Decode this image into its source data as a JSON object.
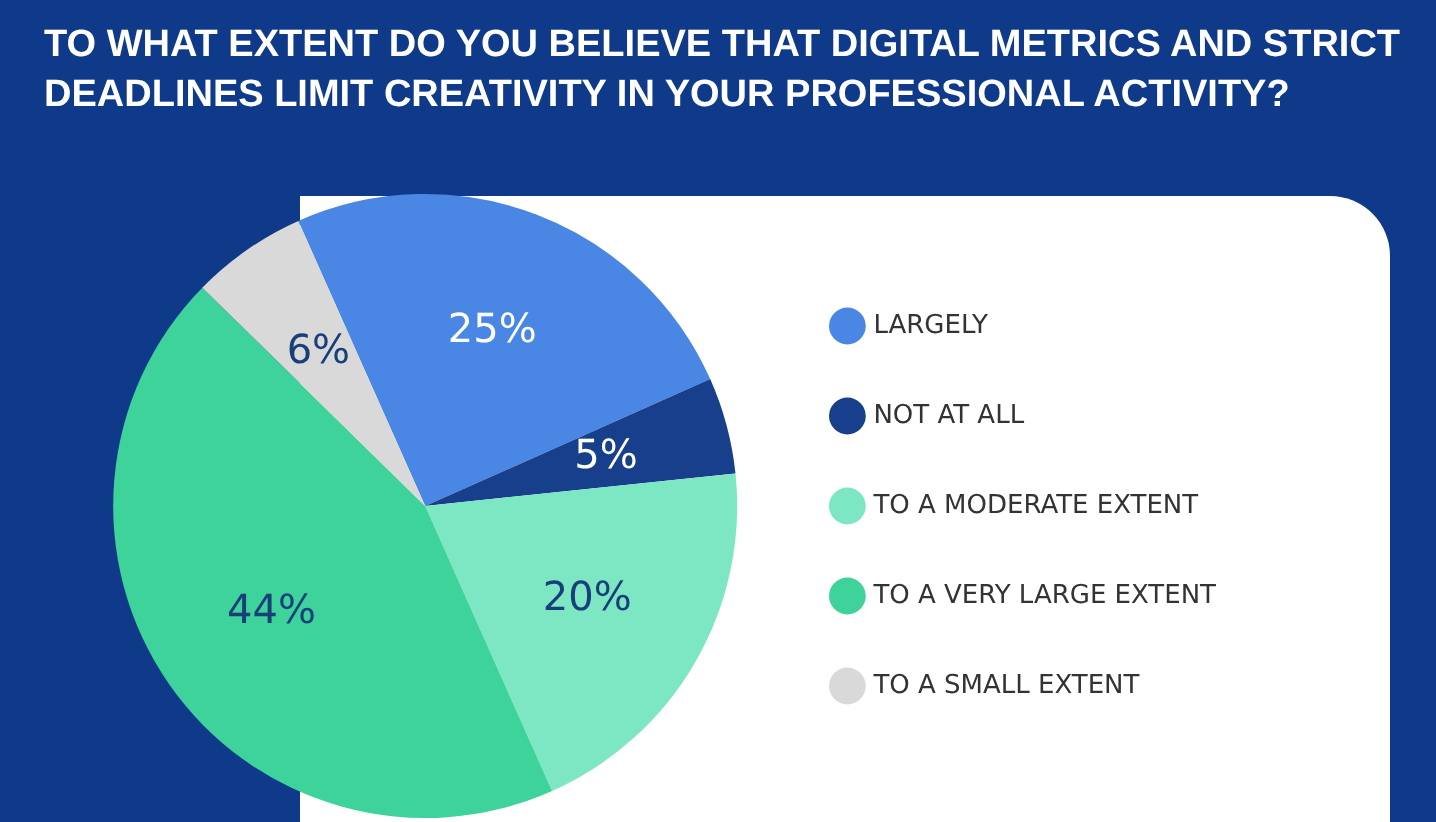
{
  "chart_data": {
    "type": "pie",
    "title": "TO WHAT EXTENT DO YOU BELIEVE THAT DIGITAL METRICS AND STRICT DEADLINES LIMIT CREATIVITY IN YOUR PROFESSIONAL ACTIVITY?",
    "categories": [
      "LARGELY",
      "NOT AT ALL",
      "TO A MODERATE EXTENT",
      "TO A VERY LARGE EXTENT",
      "TO A SMALL EXTENT"
    ],
    "values": [
      25,
      5,
      20,
      44,
      6
    ],
    "value_labels": [
      "25%",
      "5%",
      "20%",
      "44%",
      "6%"
    ],
    "colors": [
      "#4a86e4",
      "#173f8c",
      "#7de6c3",
      "#3ed39b",
      "#d9d9d9"
    ],
    "legend": "right"
  }
}
